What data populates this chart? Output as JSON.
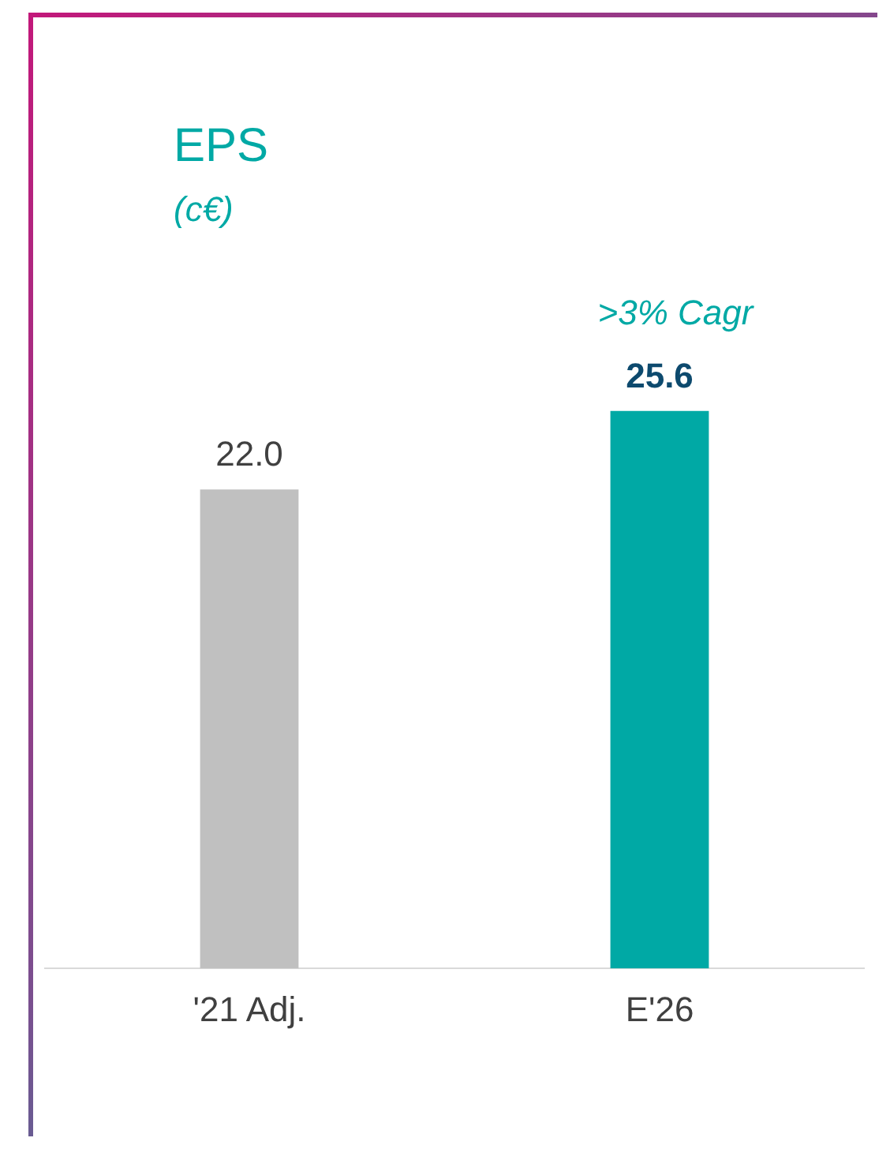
{
  "chart_data": {
    "type": "bar",
    "title": "EPS",
    "subtitle": "(c€)",
    "categories": [
      "'21 Adj.",
      "E'26"
    ],
    "values": [
      22.0,
      25.6
    ],
    "colors": [
      "#c0c0c0",
      "#00a9a5"
    ],
    "value_labels": [
      "22.0",
      "25.6"
    ],
    "annotations": [
      ">3% Cagr"
    ],
    "grid": false,
    "legend": false
  }
}
